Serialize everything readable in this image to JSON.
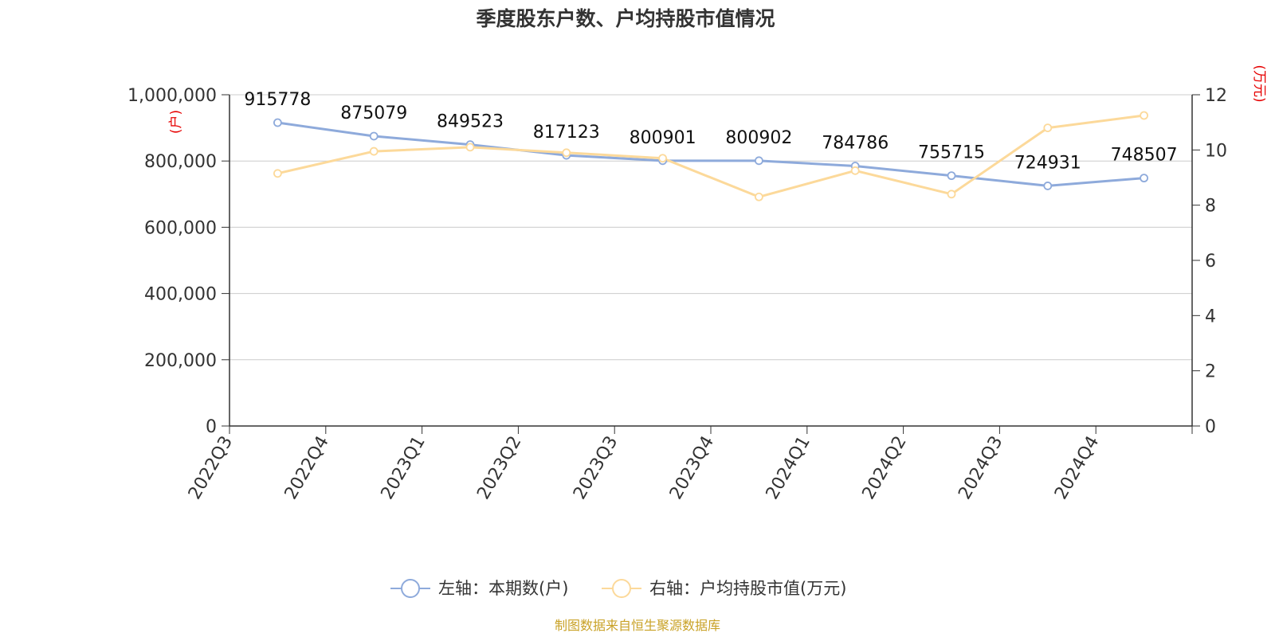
{
  "chart_data": {
    "type": "line",
    "title": "季度股东户数、户均持股市值情况",
    "source": "制图数据来自恒生聚源数据库",
    "categories": [
      "2022Q3",
      "2022Q4",
      "2023Q1",
      "2023Q2",
      "2023Q3",
      "2023Q4",
      "2024Q1",
      "2024Q2",
      "2024Q3",
      "2024Q4"
    ],
    "left_axis": {
      "unit_label": "(户)",
      "ylim": [
        0,
        1000000
      ],
      "ticks": [
        0,
        200000,
        400000,
        600000,
        800000,
        1000000
      ],
      "tick_labels": [
        "0",
        "200,000",
        "400,000",
        "600,000",
        "800,000",
        "1,000,000"
      ]
    },
    "right_axis": {
      "unit_label": "(万元)",
      "ylim": [
        0,
        12
      ],
      "ticks": [
        0,
        2,
        4,
        6,
        8,
        10,
        12
      ],
      "tick_labels": [
        "0",
        "2",
        "4",
        "6",
        "8",
        "10",
        "12"
      ]
    },
    "grid": true,
    "legend_position": "bottom-center",
    "series": [
      {
        "name": "左轴：本期数(户)",
        "axis": "left",
        "color": "#8eaadb",
        "values": [
          915778,
          875079,
          849523,
          817123,
          800901,
          800902,
          784786,
          755715,
          724931,
          748507
        ],
        "data_labels": [
          "915778",
          "875079",
          "849523",
          "817123",
          "800901",
          "800902",
          "784786",
          "755715",
          "724931",
          "748507"
        ]
      },
      {
        "name": "右轴：户均持股市值(万元)",
        "axis": "right",
        "color": "#fcd99a",
        "values": [
          9.15,
          9.95,
          10.1,
          9.9,
          9.7,
          8.3,
          9.25,
          8.4,
          10.8,
          11.25
        ]
      }
    ]
  }
}
